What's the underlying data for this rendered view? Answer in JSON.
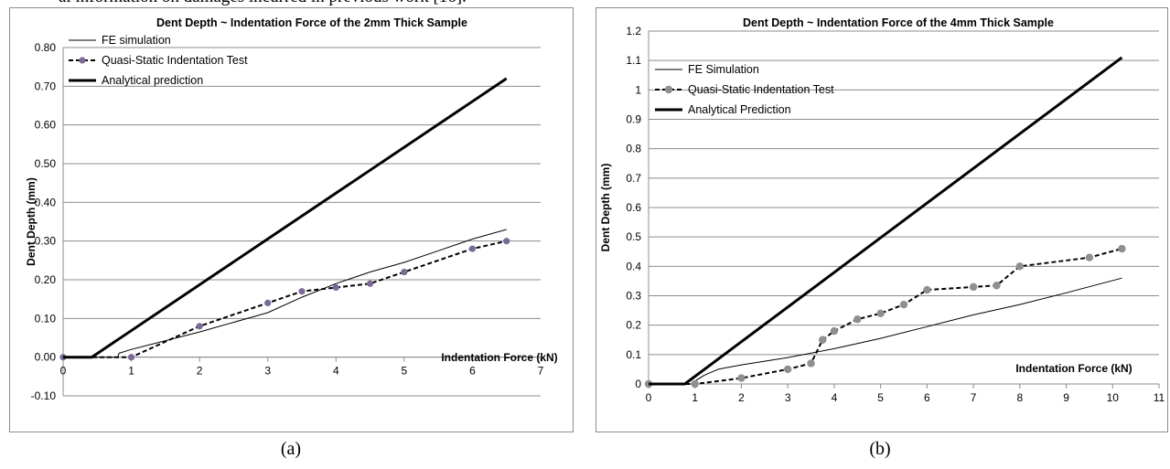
{
  "strip_text": "al information on damages incurred in previous work [16].",
  "captions": [
    "(a)",
    "(b)"
  ],
  "chart_data": [
    {
      "type": "line",
      "title": "Dent Depth ~ Indentation Force of the 2mm Thick Sample",
      "xlabel": "Indentation Force (kN)",
      "ylabel": "Dent Depth (mm)",
      "xlim": [
        0,
        7
      ],
      "ylim": [
        -0.1,
        0.8
      ],
      "xticks": [
        "0",
        "1",
        "2",
        "3",
        "4",
        "5",
        "6",
        "7"
      ],
      "yticks": [
        "-0.10",
        "0.00",
        "0.10",
        "0.20",
        "0.30",
        "0.40",
        "0.50",
        "0.60",
        "0.70",
        "0.80"
      ],
      "grid": "horizontal",
      "legend_position": "top-left",
      "series": [
        {
          "name": "FE simulation",
          "style": "thin-solid",
          "color": "#000000",
          "x": [
            0,
            0.8,
            0.82,
            1.0,
            2.0,
            3.0,
            3.5,
            4.0,
            4.5,
            5.0,
            5.5,
            6.0,
            6.5
          ],
          "y": [
            0,
            0,
            0.01,
            0.02,
            0.065,
            0.115,
            0.155,
            0.19,
            0.22,
            0.245,
            0.275,
            0.305,
            0.33
          ]
        },
        {
          "name": "Quasi-Static Indentation Test",
          "style": "dashed-markers",
          "color": "#000000",
          "marker_color": "#7a6a95",
          "x": [
            0,
            1.0,
            2.0,
            3.0,
            3.5,
            4.0,
            4.5,
            5.0,
            6.0,
            6.5
          ],
          "y": [
            0,
            0,
            0.08,
            0.14,
            0.17,
            0.18,
            0.19,
            0.22,
            0.28,
            0.3
          ]
        },
        {
          "name": "Analytical prediction",
          "style": "thick-solid",
          "color": "#000000",
          "x": [
            0,
            0.42,
            6.5
          ],
          "y": [
            0,
            0,
            0.72
          ]
        }
      ]
    },
    {
      "type": "line",
      "title": "Dent Depth ~ Indentation Force of the 4mm Thick Sample",
      "xlabel": "Indentation Force (kN)",
      "ylabel": "Dent Depth (mm)",
      "xlim": [
        0,
        11
      ],
      "ylim": [
        0,
        1.2
      ],
      "xticks": [
        "0",
        "1",
        "2",
        "3",
        "4",
        "5",
        "6",
        "7",
        "8",
        "9",
        "10",
        "11"
      ],
      "yticks": [
        "0",
        "0.1",
        "0.2",
        "0.3",
        "0.4",
        "0.5",
        "0.6",
        "0.7",
        "0.8",
        "0.9",
        "1",
        "1.1",
        "1.2"
      ],
      "grid": "horizontal",
      "legend_position": "top-left",
      "series": [
        {
          "name": "FE Simulation",
          "style": "thin-solid",
          "color": "#000000",
          "x": [
            0,
            0.95,
            1.0,
            1.2,
            1.5,
            2.0,
            3.0,
            4.0,
            5.0,
            6.0,
            7.0,
            8.0,
            9.0,
            10.2
          ],
          "y": [
            0,
            0,
            0.01,
            0.03,
            0.05,
            0.065,
            0.09,
            0.12,
            0.155,
            0.195,
            0.235,
            0.27,
            0.31,
            0.36
          ]
        },
        {
          "name": "Quasi-Static Indentation Test",
          "style": "dashed-markers",
          "color": "#000000",
          "marker_color": "#8f8f8f",
          "x": [
            0,
            1.0,
            2.0,
            3.0,
            3.5,
            3.75,
            4.0,
            4.5,
            5.0,
            5.5,
            6.0,
            7.0,
            7.5,
            8.0,
            9.5,
            10.2
          ],
          "y": [
            0,
            0,
            0.02,
            0.05,
            0.07,
            0.15,
            0.18,
            0.22,
            0.24,
            0.27,
            0.32,
            0.33,
            0.335,
            0.4,
            0.43,
            0.46
          ]
        },
        {
          "name": "Analytical Prediction",
          "style": "thick-solid",
          "color": "#000000",
          "x": [
            0,
            0.78,
            10.2
          ],
          "y": [
            0,
            0,
            1.11
          ]
        }
      ]
    }
  ]
}
